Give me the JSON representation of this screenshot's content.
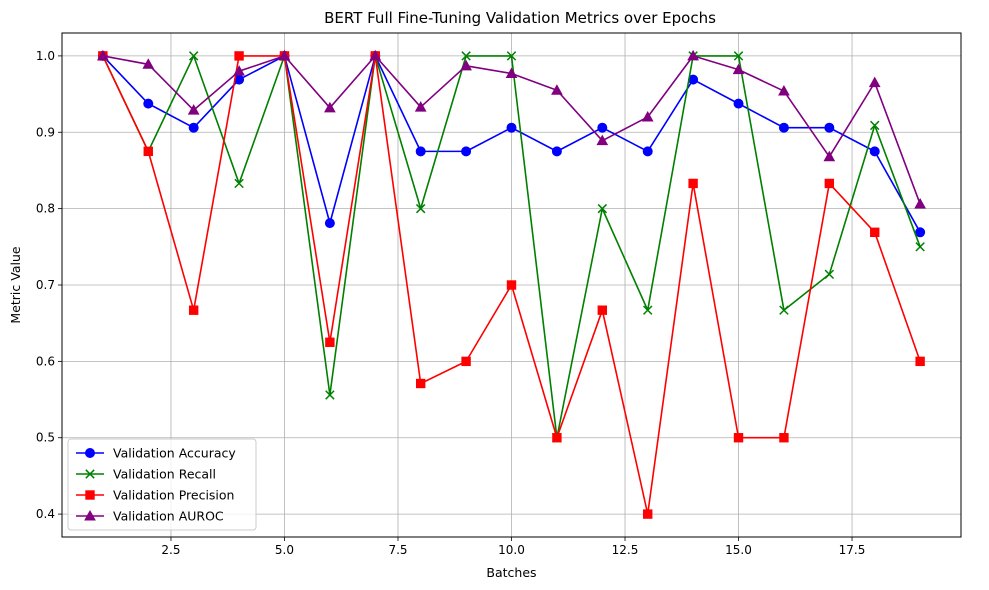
{
  "chart_data": {
    "type": "line",
    "title": "BERT Full Fine-Tuning Validation Metrics over Epochs",
    "xlabel": "Batches",
    "ylabel": "Metric Value",
    "xlim": [
      0.1,
      19.9
    ],
    "ylim": [
      0.37,
      1.03
    ],
    "xticks": [
      2.5,
      5.0,
      7.5,
      10.0,
      12.5,
      15.0,
      17.5
    ],
    "xtick_labels": [
      "2.5",
      "5.0",
      "7.5",
      "10.0",
      "12.5",
      "15.0",
      "17.5"
    ],
    "yticks": [
      0.4,
      0.5,
      0.6,
      0.7,
      0.8,
      0.9,
      1.0
    ],
    "ytick_labels": [
      "0.4",
      "0.5",
      "0.6",
      "0.7",
      "0.8",
      "0.9",
      "1.0"
    ],
    "grid": true,
    "legend_position": "lower-left",
    "x": [
      1,
      2,
      3,
      4,
      5,
      6,
      7,
      8,
      9,
      10,
      11,
      12,
      13,
      14,
      15,
      16,
      17,
      18,
      19
    ],
    "series": [
      {
        "name": "Validation Accuracy",
        "color": "#0000ff",
        "marker": "circle",
        "values": [
          1.0,
          0.9375,
          0.906,
          0.969,
          1.0,
          0.781,
          1.0,
          0.875,
          0.875,
          0.906,
          0.875,
          0.906,
          0.875,
          0.969,
          0.9375,
          0.906,
          0.906,
          0.875,
          0.769
        ]
      },
      {
        "name": "Validation Recall",
        "color": "#008000",
        "marker": "x",
        "values": [
          1.0,
          0.875,
          1.0,
          0.833,
          1.0,
          0.556,
          1.0,
          0.8,
          1.0,
          1.0,
          0.5,
          0.8,
          0.667,
          1.0,
          1.0,
          0.667,
          0.714,
          0.909,
          0.75
        ]
      },
      {
        "name": "Validation Precision",
        "color": "#ff0000",
        "marker": "square",
        "values": [
          1.0,
          0.875,
          0.667,
          1.0,
          1.0,
          0.625,
          1.0,
          0.571,
          0.6,
          0.7,
          0.5,
          0.667,
          0.4,
          0.833,
          0.5,
          0.5,
          0.833,
          0.769,
          0.6
        ]
      },
      {
        "name": "Validation AUROC",
        "color": "#800080",
        "marker": "triangle",
        "values": [
          1.0,
          0.989,
          0.929,
          0.98,
          1.0,
          0.932,
          1.0,
          0.933,
          0.987,
          0.977,
          0.955,
          0.889,
          0.92,
          1.0,
          0.982,
          0.954,
          0.868,
          0.965,
          0.806
        ]
      }
    ]
  }
}
